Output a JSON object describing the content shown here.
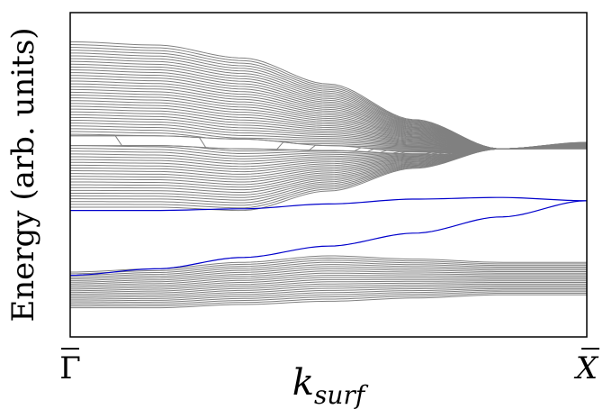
{
  "chart_data": {
    "type": "line",
    "title": "",
    "xlabel": "k",
    "xlabel_subscript": "surf",
    "ylabel": "Energy (arb. units)",
    "xticks": [
      {
        "value": 0,
        "label": "Γ"
      },
      {
        "value": 1,
        "label": "X"
      }
    ],
    "xlim": [
      0,
      1
    ],
    "ylim": [
      0,
      1
    ],
    "grid": false,
    "legend": "none",
    "colors": {
      "bulk_bands": "#808080",
      "surface_states": "#0000cc",
      "frame": "#000000"
    },
    "bands": [
      {
        "name": "",
        "kind": "bulk",
        "bottom": [
          0.4,
          0.4,
          0.39,
          0.45,
          0.52,
          0.58,
          0.6
        ],
        "top": [
          0.91,
          0.9,
          0.86,
          0.78,
          0.67,
          0.58,
          0.58
        ],
        "count": 60,
        "gap_top": [
          0.62,
          0.62,
          0.61,
          0.59,
          0.57,
          0.56,
          0.56
        ],
        "gap_bottom": [
          0.59,
          0.59,
          0.58,
          0.575,
          0.565,
          0.56,
          0.56
        ]
      },
      {
        "name": "",
        "kind": "bulk",
        "bottom": [
          0.09,
          0.09,
          0.1,
          0.11,
          0.12,
          0.13,
          0.13
        ],
        "top": [
          0.2,
          0.21,
          0.23,
          0.25,
          0.24,
          0.23,
          0.23
        ],
        "count": 22
      }
    ],
    "series": [
      {
        "name": "",
        "kind": "surface",
        "x": [
          0,
          0.17,
          0.33,
          0.5,
          0.67,
          0.83,
          1.0
        ],
        "y": [
          0.39,
          0.39,
          0.395,
          0.41,
          0.425,
          0.43,
          0.42
        ]
      },
      {
        "name": "",
        "kind": "surface",
        "x": [
          0,
          0.17,
          0.33,
          0.5,
          0.67,
          0.83,
          1.0
        ],
        "y": [
          0.19,
          0.21,
          0.245,
          0.28,
          0.32,
          0.37,
          0.42
        ]
      }
    ]
  }
}
